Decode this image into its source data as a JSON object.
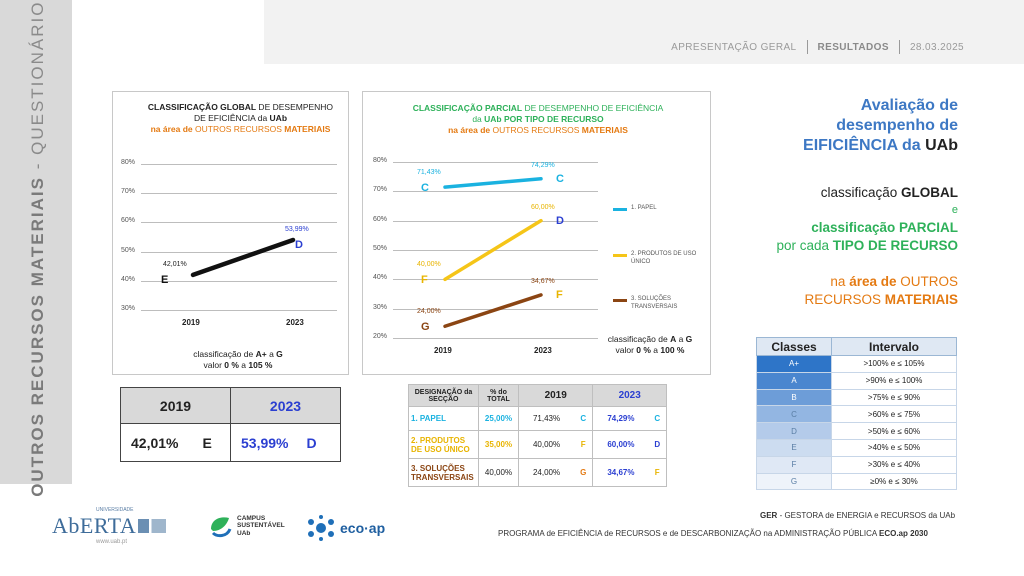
{
  "sidebar": {
    "title_bold": "OUTROS RECURSOS MATERIAIS",
    "separator": "-",
    "title_light": "QUESTIONÁRIOS"
  },
  "nav": {
    "item1": "APRESENTAÇÃO GERAL",
    "item2": "RESULTADOS",
    "item3": "28.03.2025"
  },
  "chart_global": {
    "title_a": "CLASSIFICAÇÃO GLOBAL",
    "title_b": " DE DESEMPENHO",
    "title_c": "DE EFICIÊNCIA da ",
    "title_d": "UAb",
    "title_e": "na área de",
    "title_f": " OUTROS RECURSOS ",
    "title_g": "MATERIAIS",
    "note_a": "classificação de ",
    "note_b": "A+",
    "note_c": " a ",
    "note_d": "G",
    "note_e": "valor ",
    "note_f": "0 %",
    "note_g": " a ",
    "note_h": "105 %"
  },
  "chart_partial": {
    "title_a": "CLASSIFICAÇÃO PARCIAL",
    "title_b": " DE DESEMPENHO DE EFICIÊNCIA",
    "title_c": "da ",
    "title_d": "UAb",
    "title_e": " POR TIPO DE RECURSO",
    "title_f": "na área de",
    "title_g": " OUTROS RECURSOS ",
    "title_h": "MATERIAIS",
    "note_a": "classificação de ",
    "note_b": "A",
    "note_c": " a ",
    "note_d": "G",
    "note_e": "valor ",
    "note_f": "0 %",
    "note_g": " a ",
    "note_h": "100 %"
  },
  "chart_data": [
    {
      "type": "line",
      "title": "CLASSIFICAÇÃO GLOBAL DE DESEMPENHO DE EFICIÊNCIA da UAb na área de OUTROS RECURSOS MATERIAIS",
      "categories": [
        "2019",
        "2023"
      ],
      "ylim": [
        30,
        80
      ],
      "yticks": [
        "30%",
        "40%",
        "50%",
        "60%",
        "70%",
        "80%"
      ],
      "series": [
        {
          "name": "Global",
          "color": "#111111",
          "values": [
            42.01,
            53.99
          ],
          "labels": [
            "42,01%",
            "53,99%"
          ],
          "classes": [
            "E",
            "D"
          ]
        }
      ]
    },
    {
      "type": "line",
      "title": "CLASSIFICAÇÃO PARCIAL DE DESEMPENHO DE EFICIÊNCIA da UAb POR TIPO DE RECURSO na área de OUTROS RECURSOS MATERIAIS",
      "categories": [
        "2019",
        "2023"
      ],
      "ylim": [
        20,
        80
      ],
      "yticks": [
        "20%",
        "30%",
        "40%",
        "50%",
        "60%",
        "70%",
        "80%"
      ],
      "series": [
        {
          "name": "1. PAPEL",
          "color": "#1ab2e0",
          "values": [
            71.43,
            74.29
          ],
          "labels": [
            "71,43%",
            "74,29%"
          ],
          "classes": [
            "C",
            "C"
          ]
        },
        {
          "name": "2. PRODUTOS DE USO ÚNICO",
          "color": "#f5c518",
          "values": [
            40.0,
            60.0
          ],
          "labels": [
            "40,00%",
            "60,00%"
          ],
          "classes": [
            "F",
            "D"
          ]
        },
        {
          "name": "3. SOLUÇÕES TRANSVERSAIS",
          "color": "#8b4513",
          "values": [
            24.0,
            34.67
          ],
          "labels": [
            "24,00%",
            "34,67%"
          ],
          "classes": [
            "G",
            "F"
          ]
        }
      ]
    }
  ],
  "summary": {
    "year1": "2019",
    "year2": "2023",
    "val1": "42,01%",
    "class1": "E",
    "val2": "53,99%",
    "class2": "D"
  },
  "detail_table": {
    "headers": {
      "designacao": "DESIGNAÇÃO da SECÇÃO",
      "pct_total": "% do TOTAL",
      "y2019": "2019",
      "y2023": "2023"
    },
    "rows": [
      {
        "name": "1. PAPEL",
        "pct": "25,00%",
        "v2019": "71,43%",
        "c2019": "C",
        "v2023": "74,29%",
        "c2023": "C"
      },
      {
        "name": "2. PRODUTOS DE USO ÚNICO",
        "pct": "35,00%",
        "v2019": "40,00%",
        "c2019": "F",
        "v2023": "60,00%",
        "c2023": "D"
      },
      {
        "name": "3. SOLUÇÕES TRANSVERSAIS",
        "pct": "40,00%",
        "v2019": "24,00%",
        "c2019": "G",
        "v2023": "34,67%",
        "c2023": "F"
      }
    ]
  },
  "right_panel": {
    "l1": "Avaliação de",
    "l2": "desempenho de",
    "l3a": "EIFICIÊNCIA da ",
    "l3b": "UAb",
    "g1a": "classificação ",
    "g1b": "GLOBAL",
    "g2": "e",
    "p1": "classificação PARCIAL",
    "p2a": "por cada ",
    "p2b": "TIPO DE RECURSO",
    "a1a": "na ",
    "a1b": "área de",
    "a1c": " OUTROS",
    "a2a": "RECURSOS ",
    "a2b": "MATERIAIS"
  },
  "classes_table": {
    "header_class": "Classes",
    "header_interval": "Intervalo",
    "rows": [
      {
        "cls": "A+",
        "interval": ">100% e ≤ 105%",
        "color": "#2e75c8"
      },
      {
        "cls": "A",
        "interval": ">90% e ≤ 100%",
        "color": "#4a86cf"
      },
      {
        "cls": "B",
        "interval": ">75% e ≤ 90%",
        "color": "#6d9dd8"
      },
      {
        "cls": "C",
        "interval": ">60% e ≤ 75%",
        "color": "#93b6e2"
      },
      {
        "cls": "D",
        "interval": ">50% e ≤ 60%",
        "color": "#b4cbea"
      },
      {
        "cls": "E",
        "interval": ">40% e ≤ 50%",
        "color": "#ccdcf0"
      },
      {
        "cls": "F",
        "interval": ">30% e ≤ 40%",
        "color": "#dfe8f5"
      },
      {
        "cls": "G",
        "interval": "≥0% e ≤ 30%",
        "color": "#eef3fa"
      }
    ]
  },
  "footer": {
    "ger_a": "GER",
    "ger_b": " - GESTORA de ENERGIA e RECURSOS da UAb",
    "prog_a": "PROGRAMA de EFICIÊNCIA de RECURSOS e de DESCARBONIZAÇÃO na ADMINISTRAÇÃO PÚBLICA ",
    "prog_b": "ECO.ap 2030",
    "logo1_small": "UNIVERSIDADE",
    "logo1_main": "AbERTA",
    "logo1_url": "www.uab.pt",
    "logo2_a": "CAMPUS",
    "logo2_b": "SUSTENTÁVEL",
    "logo2_c": "UAb",
    "logo3": "eco·ap"
  }
}
